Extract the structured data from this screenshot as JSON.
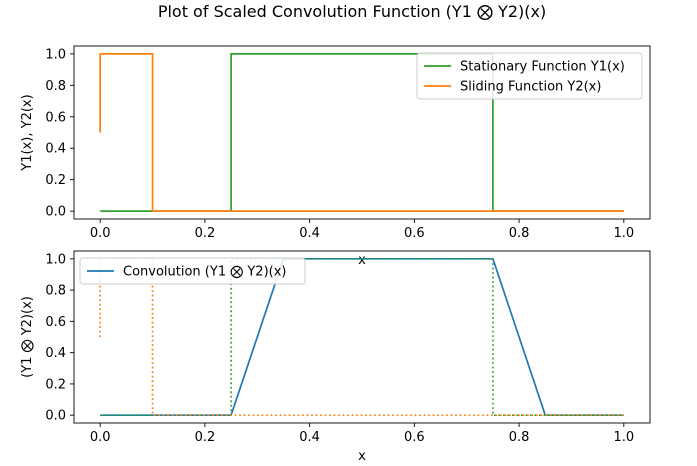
{
  "figure": {
    "title": "Plot of Scaled Convolution Function (Y1 ⨂ Y2)(x)"
  },
  "chart_data": [
    {
      "type": "line",
      "title": "",
      "xlabel": "x",
      "ylabel": "Y1(x), Y2(x)",
      "xlim": [
        -0.05,
        1.05
      ],
      "ylim": [
        -0.05,
        1.05
      ],
      "xticks": [
        "0.0",
        "0.2",
        "0.4",
        "0.6",
        "0.8",
        "1.0"
      ],
      "yticks": [
        "0.0",
        "0.2",
        "0.4",
        "0.6",
        "0.8",
        "1.0"
      ],
      "grid": false,
      "legend_position": "top-right",
      "series": [
        {
          "name": "Stationary Function Y1(x)",
          "color": "#2ca02c",
          "style": "solid",
          "x": [
            0,
            0.25,
            0.25,
            0.75,
            0.75,
            1.0
          ],
          "y": [
            0,
            0,
            1,
            1,
            0,
            0
          ]
        },
        {
          "name": "Sliding Function Y2(x)",
          "color": "#ff7f0e",
          "style": "solid",
          "x": [
            0,
            0,
            0.1,
            0.1,
            1.0
          ],
          "y": [
            0.5,
            1,
            1,
            0,
            0
          ]
        }
      ]
    },
    {
      "type": "line",
      "title": "",
      "xlabel": "x",
      "ylabel": "(Y1 ⨂ Y2)(x)",
      "xlim": [
        -0.05,
        1.05
      ],
      "ylim": [
        -0.05,
        1.05
      ],
      "xticks": [
        "0.0",
        "0.2",
        "0.4",
        "0.6",
        "0.8",
        "1.0"
      ],
      "yticks": [
        "0.0",
        "0.2",
        "0.4",
        "0.6",
        "0.8",
        "1.0"
      ],
      "grid": false,
      "legend_position": "top-left",
      "series": [
        {
          "name": "Convolution (Y1 ⨂ Y2)(x)",
          "color": "#1f77b4",
          "style": "solid",
          "x": [
            0,
            0.25,
            0.35,
            0.75,
            0.85,
            1.0
          ],
          "y": [
            0,
            0,
            1,
            1,
            0,
            0
          ]
        },
        {
          "color": "#2ca02c",
          "style": "dotted",
          "x": [
            0,
            0.25,
            0.25,
            0.75,
            0.75,
            1.0
          ],
          "y": [
            0,
            0,
            1,
            1,
            0,
            0
          ]
        },
        {
          "color": "#ff7f0e",
          "style": "dotted",
          "x": [
            0,
            0,
            0.1,
            0.1,
            1.0
          ],
          "y": [
            0.5,
            1,
            1,
            0,
            0
          ]
        }
      ]
    }
  ]
}
